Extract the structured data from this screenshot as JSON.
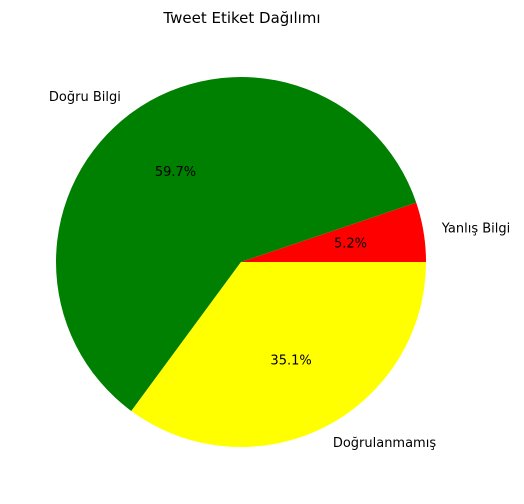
{
  "chart_data": {
    "type": "pie",
    "title": "Tweet Etiket Dağılımı",
    "start_angle_deg": 0,
    "direction": "counterclockwise",
    "slices": [
      {
        "label": "Yanlış Bilgi",
        "value": 5.2,
        "pct_label": "5.2%",
        "color": "#ff0000"
      },
      {
        "label": "Doğru Bilgi",
        "value": 59.7,
        "pct_label": "59.7%",
        "color": "#008000"
      },
      {
        "label": "Doğrulanmamış",
        "value": 35.1,
        "pct_label": "35.1%",
        "color": "#ffff00"
      }
    ]
  }
}
